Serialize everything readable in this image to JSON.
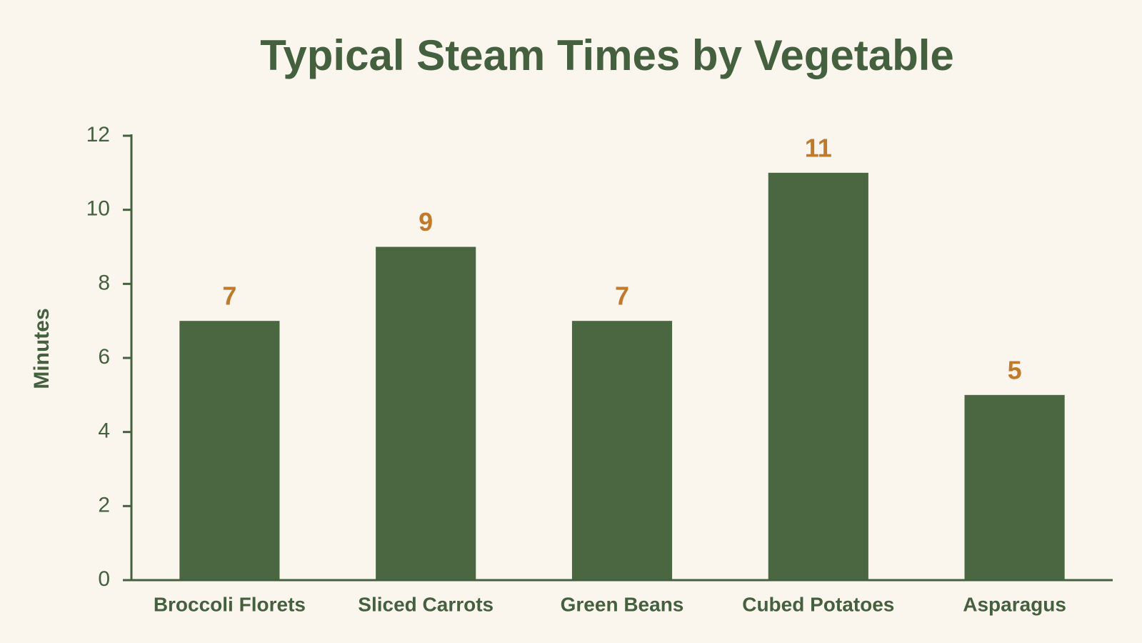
{
  "chart_data": {
    "type": "bar",
    "title": "Typical Steam Times by Vegetable",
    "categories": [
      "Broccoli Florets",
      "Sliced Carrots",
      "Green Beans",
      "Cubed Potatoes",
      "Asparagus"
    ],
    "values": [
      7,
      9,
      7,
      11,
      5
    ],
    "color": "#4a6741",
    "label_color": "#c07a2c",
    "y_label": "Minutes",
    "ylim": [
      0,
      12
    ],
    "yticks": [
      0,
      2,
      4,
      6,
      8,
      10,
      12
    ],
    "grid": false
  }
}
